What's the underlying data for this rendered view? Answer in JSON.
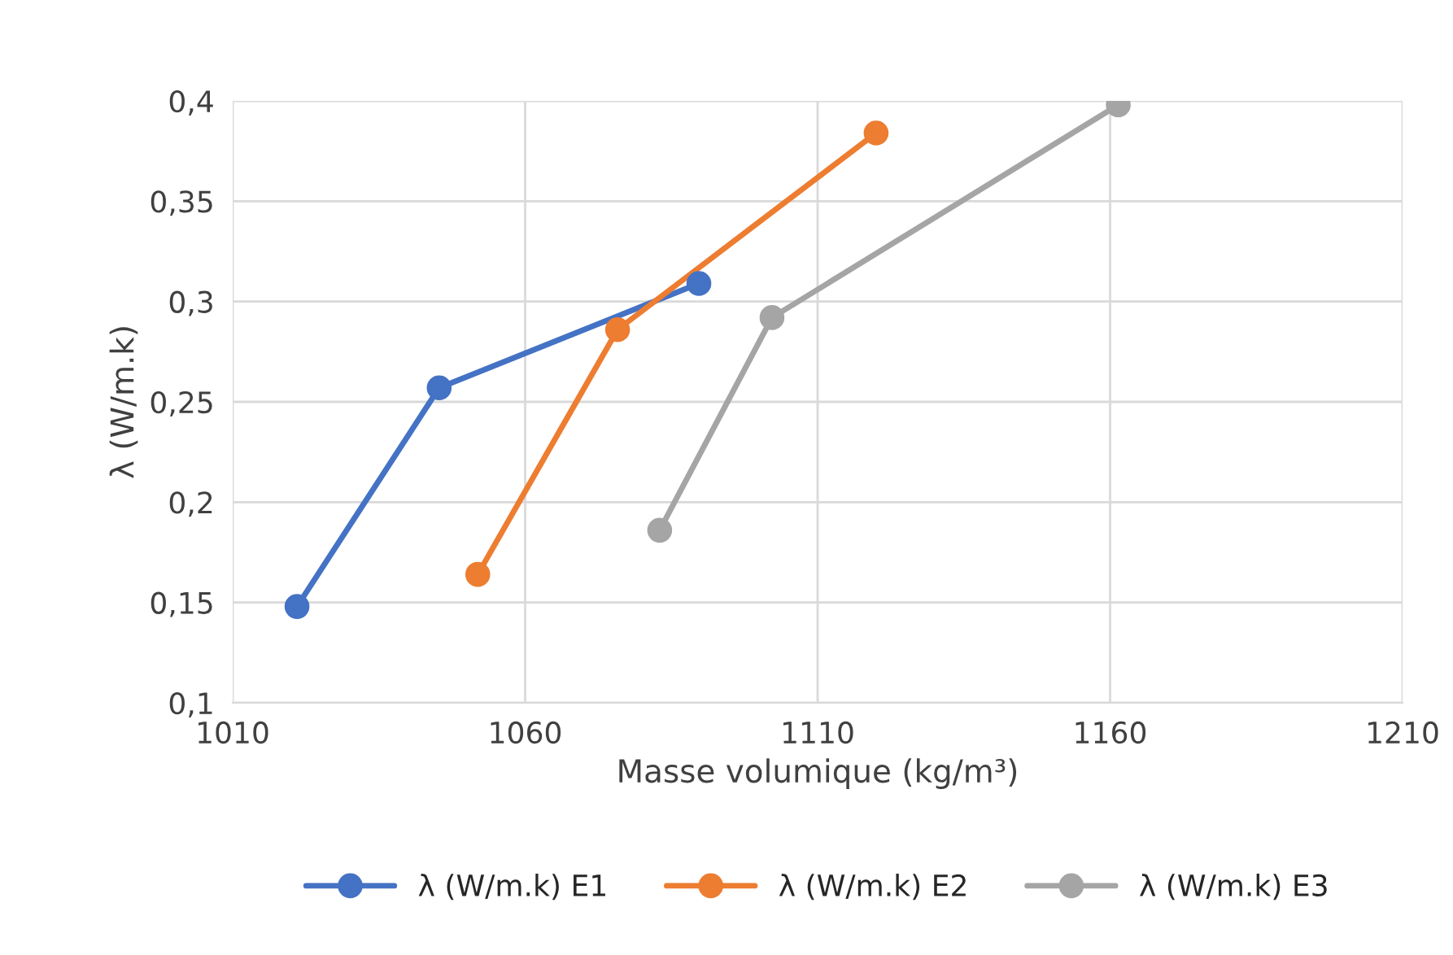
{
  "chart_data": {
    "type": "line",
    "xlabel": "Masse volumique (kg/m³)",
    "ylabel": "λ (W/m.k)",
    "series": [
      {
        "name": "λ (W/m.k) E1",
        "color": "#4472c4",
        "x": [
          1021,
          1045.3,
          1089.7
        ],
        "values": [
          0.148,
          0.257,
          0.309
        ]
      },
      {
        "name": "λ (W/m.k) E2",
        "color": "#ed7d31",
        "x": [
          1051.9,
          1075.8,
          1120
        ],
        "values": [
          0.164,
          0.286,
          0.384
        ]
      },
      {
        "name": "λ (W/m.k) E3",
        "color": "#a5a5a5",
        "x": [
          1083,
          1102.2,
          1161.4
        ],
        "values": [
          0.186,
          0.292,
          0.398
        ]
      }
    ],
    "xlim": [
      1010,
      1210
    ],
    "xticks": [
      1010,
      1060,
      1110,
      1160,
      1210
    ],
    "ylim": [
      0.1,
      0.4
    ],
    "yticks": [
      {
        "value": 0.1,
        "label": "0,1"
      },
      {
        "value": 0.15,
        "label": "0,15"
      },
      {
        "value": 0.2,
        "label": "0,2"
      },
      {
        "value": 0.25,
        "label": "0,25"
      },
      {
        "value": 0.3,
        "label": "0,3"
      },
      {
        "value": 0.35,
        "label": "0,35"
      },
      {
        "value": 0.4,
        "label": "0,4"
      }
    ],
    "grid": true,
    "legend": "bottom",
    "marker": "circle",
    "line_style": "solid"
  }
}
